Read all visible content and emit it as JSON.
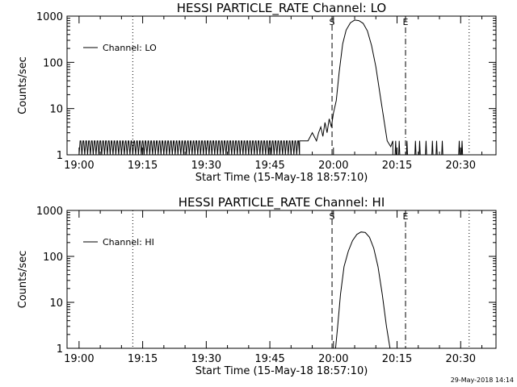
{
  "chart_data": [
    {
      "type": "line",
      "title": "HESSI PARTICLE_RATE Channel: LO",
      "xlabel": "Start Time (15-May-18 18:57:10)",
      "ylabel": "Counts/sec",
      "y_scale": "log",
      "ylim": [
        1,
        1000
      ],
      "xlim": [
        "18:57:10",
        "20:38:20"
      ],
      "x_ticks": [
        "19:00",
        "19:15",
        "19:30",
        "19:45",
        "20:00",
        "20:15",
        "20:30"
      ],
      "y_ticks": [
        "1",
        "10",
        "100",
        "1000"
      ],
      "legend": "upper-left",
      "vertical_lines": [
        {
          "time": "19:12:40",
          "style": "dotted",
          "label": ""
        },
        {
          "time": "19:59:40",
          "style": "dashed",
          "label": "S"
        },
        {
          "time": "20:17:00",
          "style": "dash-dot",
          "label": "E"
        },
        {
          "time": "20:32:00",
          "style": "dotted",
          "label": ""
        }
      ],
      "series": [
        {
          "name": "Channel: LO",
          "baseline": {
            "from": "19:00:00",
            "to": "19:52:00",
            "levels": [
              1,
              2
            ]
          },
          "x": [
            "19:52:00",
            "19:54:00",
            "19:55:00",
            "19:56:00",
            "19:56:30",
            "19:57:00",
            "19:57:30",
            "19:58:00",
            "19:58:30",
            "19:59:00",
            "19:59:30",
            "20:00:00",
            "20:00:40",
            "20:01:20",
            "20:02:10",
            "20:03:00",
            "20:04:00",
            "20:05:00",
            "20:06:00",
            "20:07:00",
            "20:08:00",
            "20:09:00",
            "20:10:00",
            "20:11:00",
            "20:12:00",
            "20:12:40",
            "20:13:30",
            "20:14:00"
          ],
          "values": [
            2,
            2,
            3,
            2,
            3,
            4,
            2.5,
            5,
            3,
            6,
            4,
            8,
            15,
            60,
            250,
            500,
            720,
            820,
            800,
            700,
            480,
            230,
            80,
            20,
            5,
            2,
            1.5,
            2
          ],
          "tail": {
            "from": "20:14:00",
            "to": "20:30:40",
            "levels": [
              1,
              2
            ]
          }
        }
      ]
    },
    {
      "type": "line",
      "title": "HESSI PARTICLE_RATE Channel: HI",
      "xlabel": "Start Time (15-May-18 18:57:10)",
      "ylabel": "Counts/sec",
      "y_scale": "log",
      "ylim": [
        1,
        1000
      ],
      "xlim": [
        "18:57:10",
        "20:38:20"
      ],
      "x_ticks": [
        "19:00",
        "19:15",
        "19:30",
        "19:45",
        "20:00",
        "20:15",
        "20:30"
      ],
      "y_ticks": [
        "1",
        "10",
        "100",
        "1000"
      ],
      "legend": "upper-left",
      "vertical_lines": [
        {
          "time": "19:12:40",
          "style": "dotted",
          "label": ""
        },
        {
          "time": "19:59:40",
          "style": "dashed",
          "label": "S"
        },
        {
          "time": "20:17:00",
          "style": "dash-dot",
          "label": "E"
        },
        {
          "time": "20:32:00",
          "style": "dotted",
          "label": ""
        }
      ],
      "series": [
        {
          "name": "Channel: HI",
          "x": [
            "20:00:30",
            "20:01:00",
            "20:01:40",
            "20:02:30",
            "20:03:30",
            "20:04:30",
            "20:05:30",
            "20:06:30",
            "20:07:30",
            "20:08:30",
            "20:09:30",
            "20:10:30",
            "20:11:30",
            "20:12:30",
            "20:13:20"
          ],
          "values": [
            1,
            3,
            15,
            60,
            130,
            220,
            300,
            340,
            330,
            260,
            150,
            60,
            15,
            3,
            1
          ]
        }
      ]
    }
  ],
  "timestamp": "29-May-2018 14:14"
}
